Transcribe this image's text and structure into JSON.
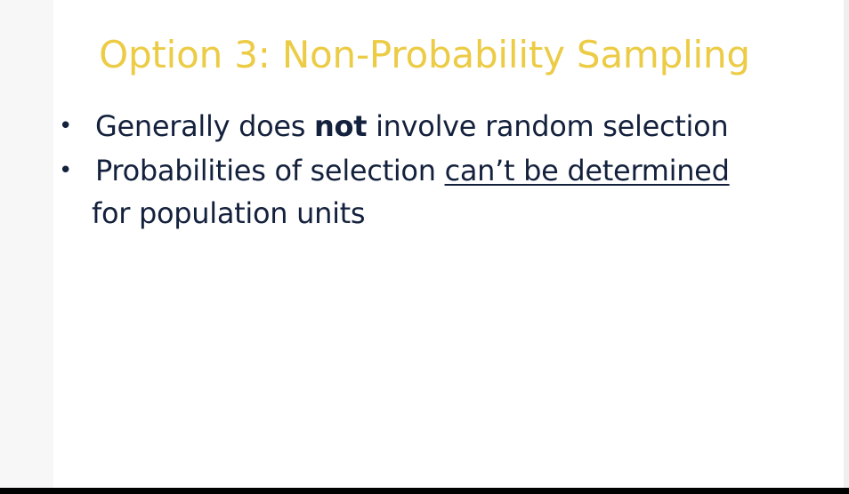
{
  "slide": {
    "title": "Option 3: Non-Probability Sampling",
    "bullets": [
      {
        "before": "Generally does ",
        "bold": "not",
        "after": " involve random selection"
      },
      {
        "before": "Probabilities of selection ",
        "underlined": "can’t be determined",
        "after": "for population units"
      }
    ],
    "bullet_symbol": "•"
  },
  "colors": {
    "title": "#eccb45",
    "body_text": "#14213d",
    "background": "#ffffff"
  }
}
